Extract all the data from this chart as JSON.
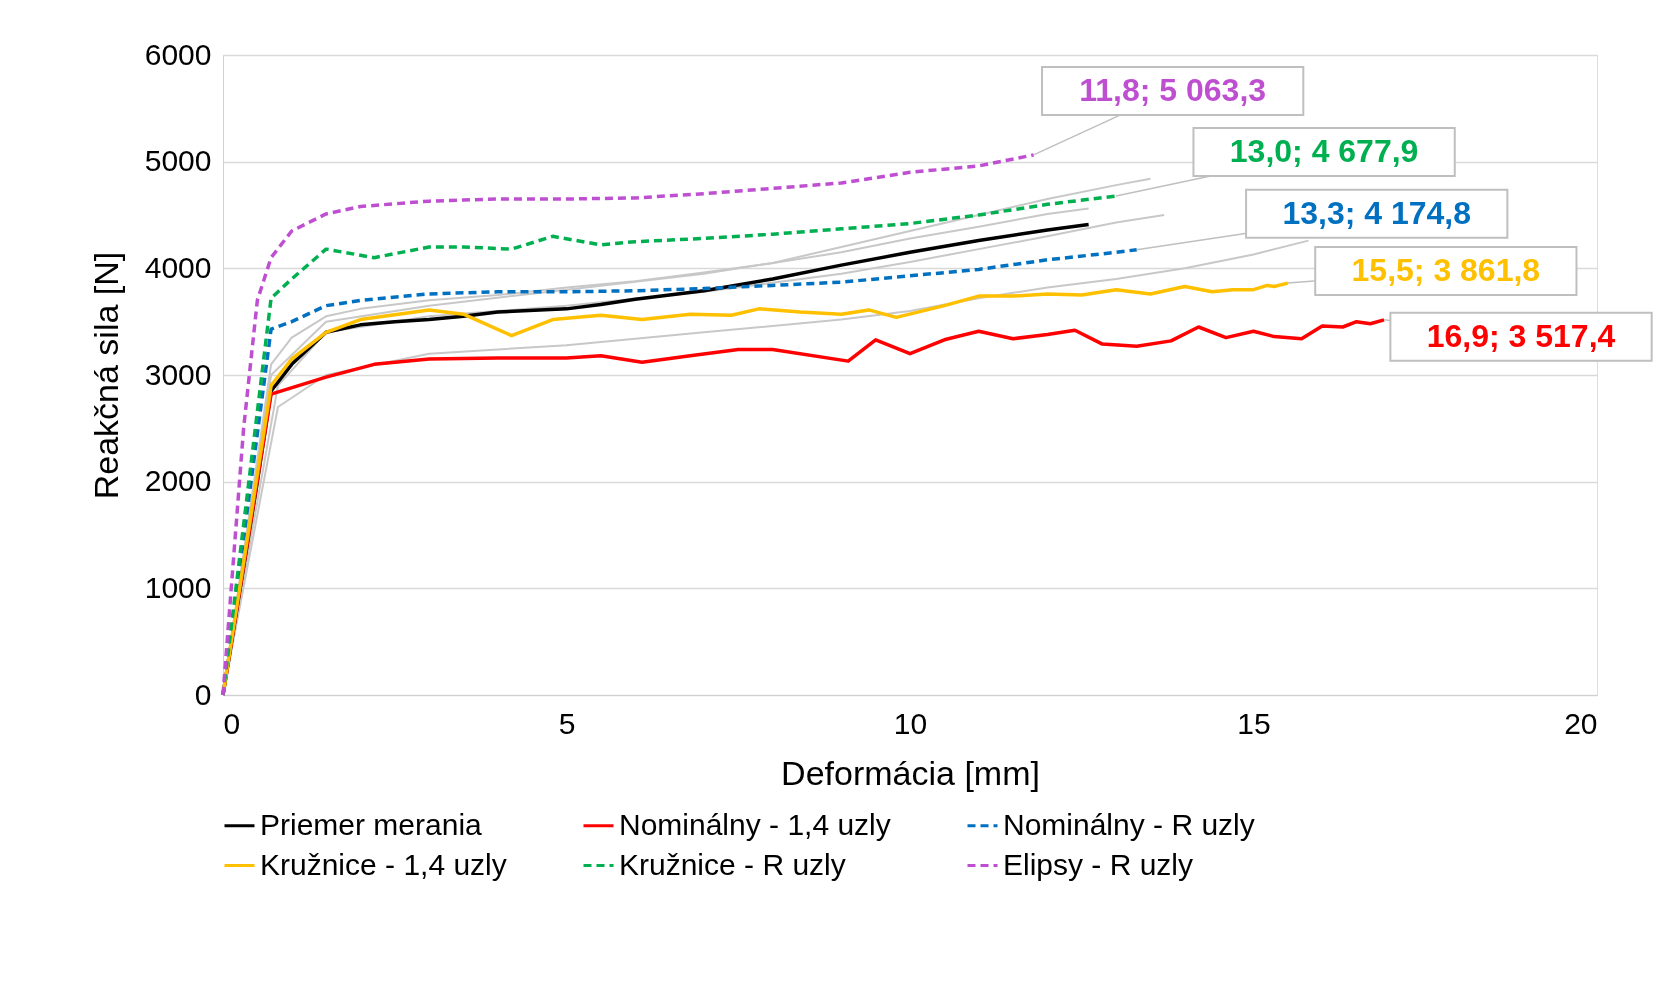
{
  "chart_data": {
    "type": "line",
    "xlabel": "Deformácia [mm]",
    "ylabel": "Reakčná sila [N]",
    "xlim": [
      0,
      20
    ],
    "xticks": [
      0,
      5,
      10,
      15,
      20
    ],
    "ylim": [
      0,
      6000
    ],
    "yticks": [
      0,
      1000,
      2000,
      3000,
      4000,
      5000,
      6000
    ],
    "grid": "y",
    "legend": "bottom",
    "marker": "none",
    "series": [
      {
        "color": "#c8c8c8",
        "line_style": "solid",
        "x": [
          0,
          0.7,
          1,
          1.5,
          2,
          3,
          4,
          5,
          6,
          7,
          8,
          9,
          10,
          11,
          12,
          13,
          13.5
        ],
        "values": [
          0,
          3100,
          3350,
          3550,
          3620,
          3700,
          3750,
          3820,
          3880,
          3960,
          4050,
          4200,
          4350,
          4500,
          4650,
          4780,
          4840
        ]
      },
      {
        "color": "#c8c8c8",
        "line_style": "solid",
        "x": [
          0,
          0.7,
          1.5,
          3,
          5,
          7,
          9,
          10,
          11,
          12,
          12.6
        ],
        "values": [
          0,
          3000,
          3500,
          3650,
          3800,
          3950,
          4150,
          4280,
          4390,
          4510,
          4560
        ]
      },
      {
        "color": "#c8c8c8",
        "line_style": "solid",
        "x": [
          0,
          0.8,
          1.5,
          3,
          5,
          7,
          9,
          10,
          11,
          12,
          13,
          13.7
        ],
        "values": [
          0,
          2900,
          3400,
          3550,
          3650,
          3780,
          3950,
          4060,
          4180,
          4300,
          4430,
          4500
        ]
      },
      {
        "color": "#c8c8c8",
        "line_style": "solid",
        "x": [
          0,
          0.8,
          1.5,
          3,
          5,
          7,
          9,
          10,
          11,
          12,
          13,
          14,
          15,
          15.8
        ],
        "values": [
          0,
          2700,
          3000,
          3200,
          3280,
          3400,
          3520,
          3600,
          3720,
          3820,
          3900,
          4000,
          4130,
          4260
        ]
      },
      {
        "name": "Priemer merania",
        "color": "#000000",
        "line_style": "solid",
        "x": [
          0,
          0.5,
          0.7,
          1,
          1.5,
          2,
          2.5,
          3,
          3.5,
          4,
          5,
          5.5,
          6,
          7,
          8,
          9,
          10,
          11,
          12,
          12.6
        ],
        "values": [
          0,
          2000,
          2850,
          3100,
          3400,
          3470,
          3500,
          3520,
          3550,
          3590,
          3620,
          3660,
          3710,
          3790,
          3900,
          4030,
          4150,
          4260,
          4360,
          4410
        ]
      },
      {
        "name": "Nominálny - 1,4 uzly",
        "color": "#ff0000",
        "line_style": "solid",
        "x": [
          0,
          0.7,
          1.5,
          2.2,
          3,
          4,
          5,
          5.5,
          6.1,
          6.8,
          7.5,
          8,
          9.1,
          9.5,
          10,
          10.5,
          11,
          11.5,
          12,
          12.4,
          12.8,
          13.3,
          13.8,
          14.2,
          14.6,
          15,
          15.3,
          15.7,
          16,
          16.3,
          16.5,
          16.7,
          16.9
        ],
        "values": [
          0,
          2820,
          2980,
          3100,
          3150,
          3160,
          3160,
          3180,
          3120,
          3180,
          3240,
          3240,
          3130,
          3330,
          3200,
          3330,
          3410,
          3340,
          3380,
          3420,
          3290,
          3270,
          3320,
          3450,
          3350,
          3410,
          3360,
          3340,
          3460,
          3450,
          3500,
          3480,
          3517.4
        ]
      },
      {
        "name": "Nominálny - R uzly",
        "color": "#0070c0",
        "line_style": "dashed",
        "x": [
          0,
          0.7,
          1,
          1.5,
          2,
          3,
          4,
          5,
          6,
          7,
          8,
          9,
          10,
          11,
          12,
          13,
          13.3
        ],
        "values": [
          0,
          3430,
          3500,
          3650,
          3700,
          3760,
          3780,
          3780,
          3790,
          3810,
          3840,
          3870,
          3930,
          3990,
          4080,
          4150,
          4174.8
        ]
      },
      {
        "name": "Kružnice - 1,4 uzly",
        "color": "#ffc000",
        "line_style": "solid",
        "x": [
          0,
          0.7,
          1,
          1.5,
          2,
          3,
          3.5,
          4.2,
          4.8,
          5.5,
          6.1,
          6.8,
          7.4,
          7.8,
          8.4,
          9,
          9.4,
          9.8,
          10.5,
          11,
          11.5,
          12,
          12.5,
          13,
          13.5,
          14,
          14.4,
          14.7,
          15,
          15.2,
          15.3,
          15.5
        ],
        "values": [
          0,
          2900,
          3150,
          3400,
          3520,
          3610,
          3570,
          3370,
          3520,
          3560,
          3520,
          3570,
          3560,
          3620,
          3590,
          3570,
          3610,
          3540,
          3650,
          3740,
          3740,
          3760,
          3750,
          3800,
          3760,
          3830,
          3780,
          3800,
          3800,
          3840,
          3830,
          3861.8
        ]
      },
      {
        "name": "Kružnice - R uzly",
        "color": "#00b050",
        "line_style": "dashed",
        "x": [
          0,
          0.7,
          1,
          1.5,
          2.2,
          3,
          3.5,
          4.2,
          4.8,
          5.5,
          6,
          7,
          8,
          9,
          10,
          11,
          12,
          13
        ],
        "values": [
          0,
          3720,
          3900,
          4180,
          4100,
          4200,
          4200,
          4180,
          4300,
          4220,
          4250,
          4280,
          4320,
          4370,
          4420,
          4500,
          4600,
          4677.9
        ]
      },
      {
        "name": "Elipsy - R uzly",
        "color": "#bf4fd1",
        "line_style": "dashed",
        "x": [
          0,
          0.3,
          0.5,
          0.7,
          1,
          1.5,
          2,
          3,
          3.5,
          4,
          5,
          6,
          7,
          8,
          9,
          10,
          11,
          11.8
        ],
        "values": [
          0,
          2500,
          3700,
          4100,
          4350,
          4510,
          4580,
          4630,
          4640,
          4650,
          4650,
          4660,
          4700,
          4750,
          4800,
          4900,
          4960,
          5063.3
        ]
      }
    ],
    "annotations": [
      {
        "text": "11,8; 5 063,3",
        "x": 11.8,
        "y": 5063.3
      },
      {
        "text": "13,0; 4 677,9",
        "x": 13.0,
        "y": 4677.9
      },
      {
        "text": "13,3; 4 174,8",
        "x": 13.3,
        "y": 4174.8
      },
      {
        "text": "15,5; 3 861,8",
        "x": 15.5,
        "y": 3861.8
      },
      {
        "text": "16,9; 3 517,4",
        "x": 16.9,
        "y": 3517.4
      }
    ]
  }
}
